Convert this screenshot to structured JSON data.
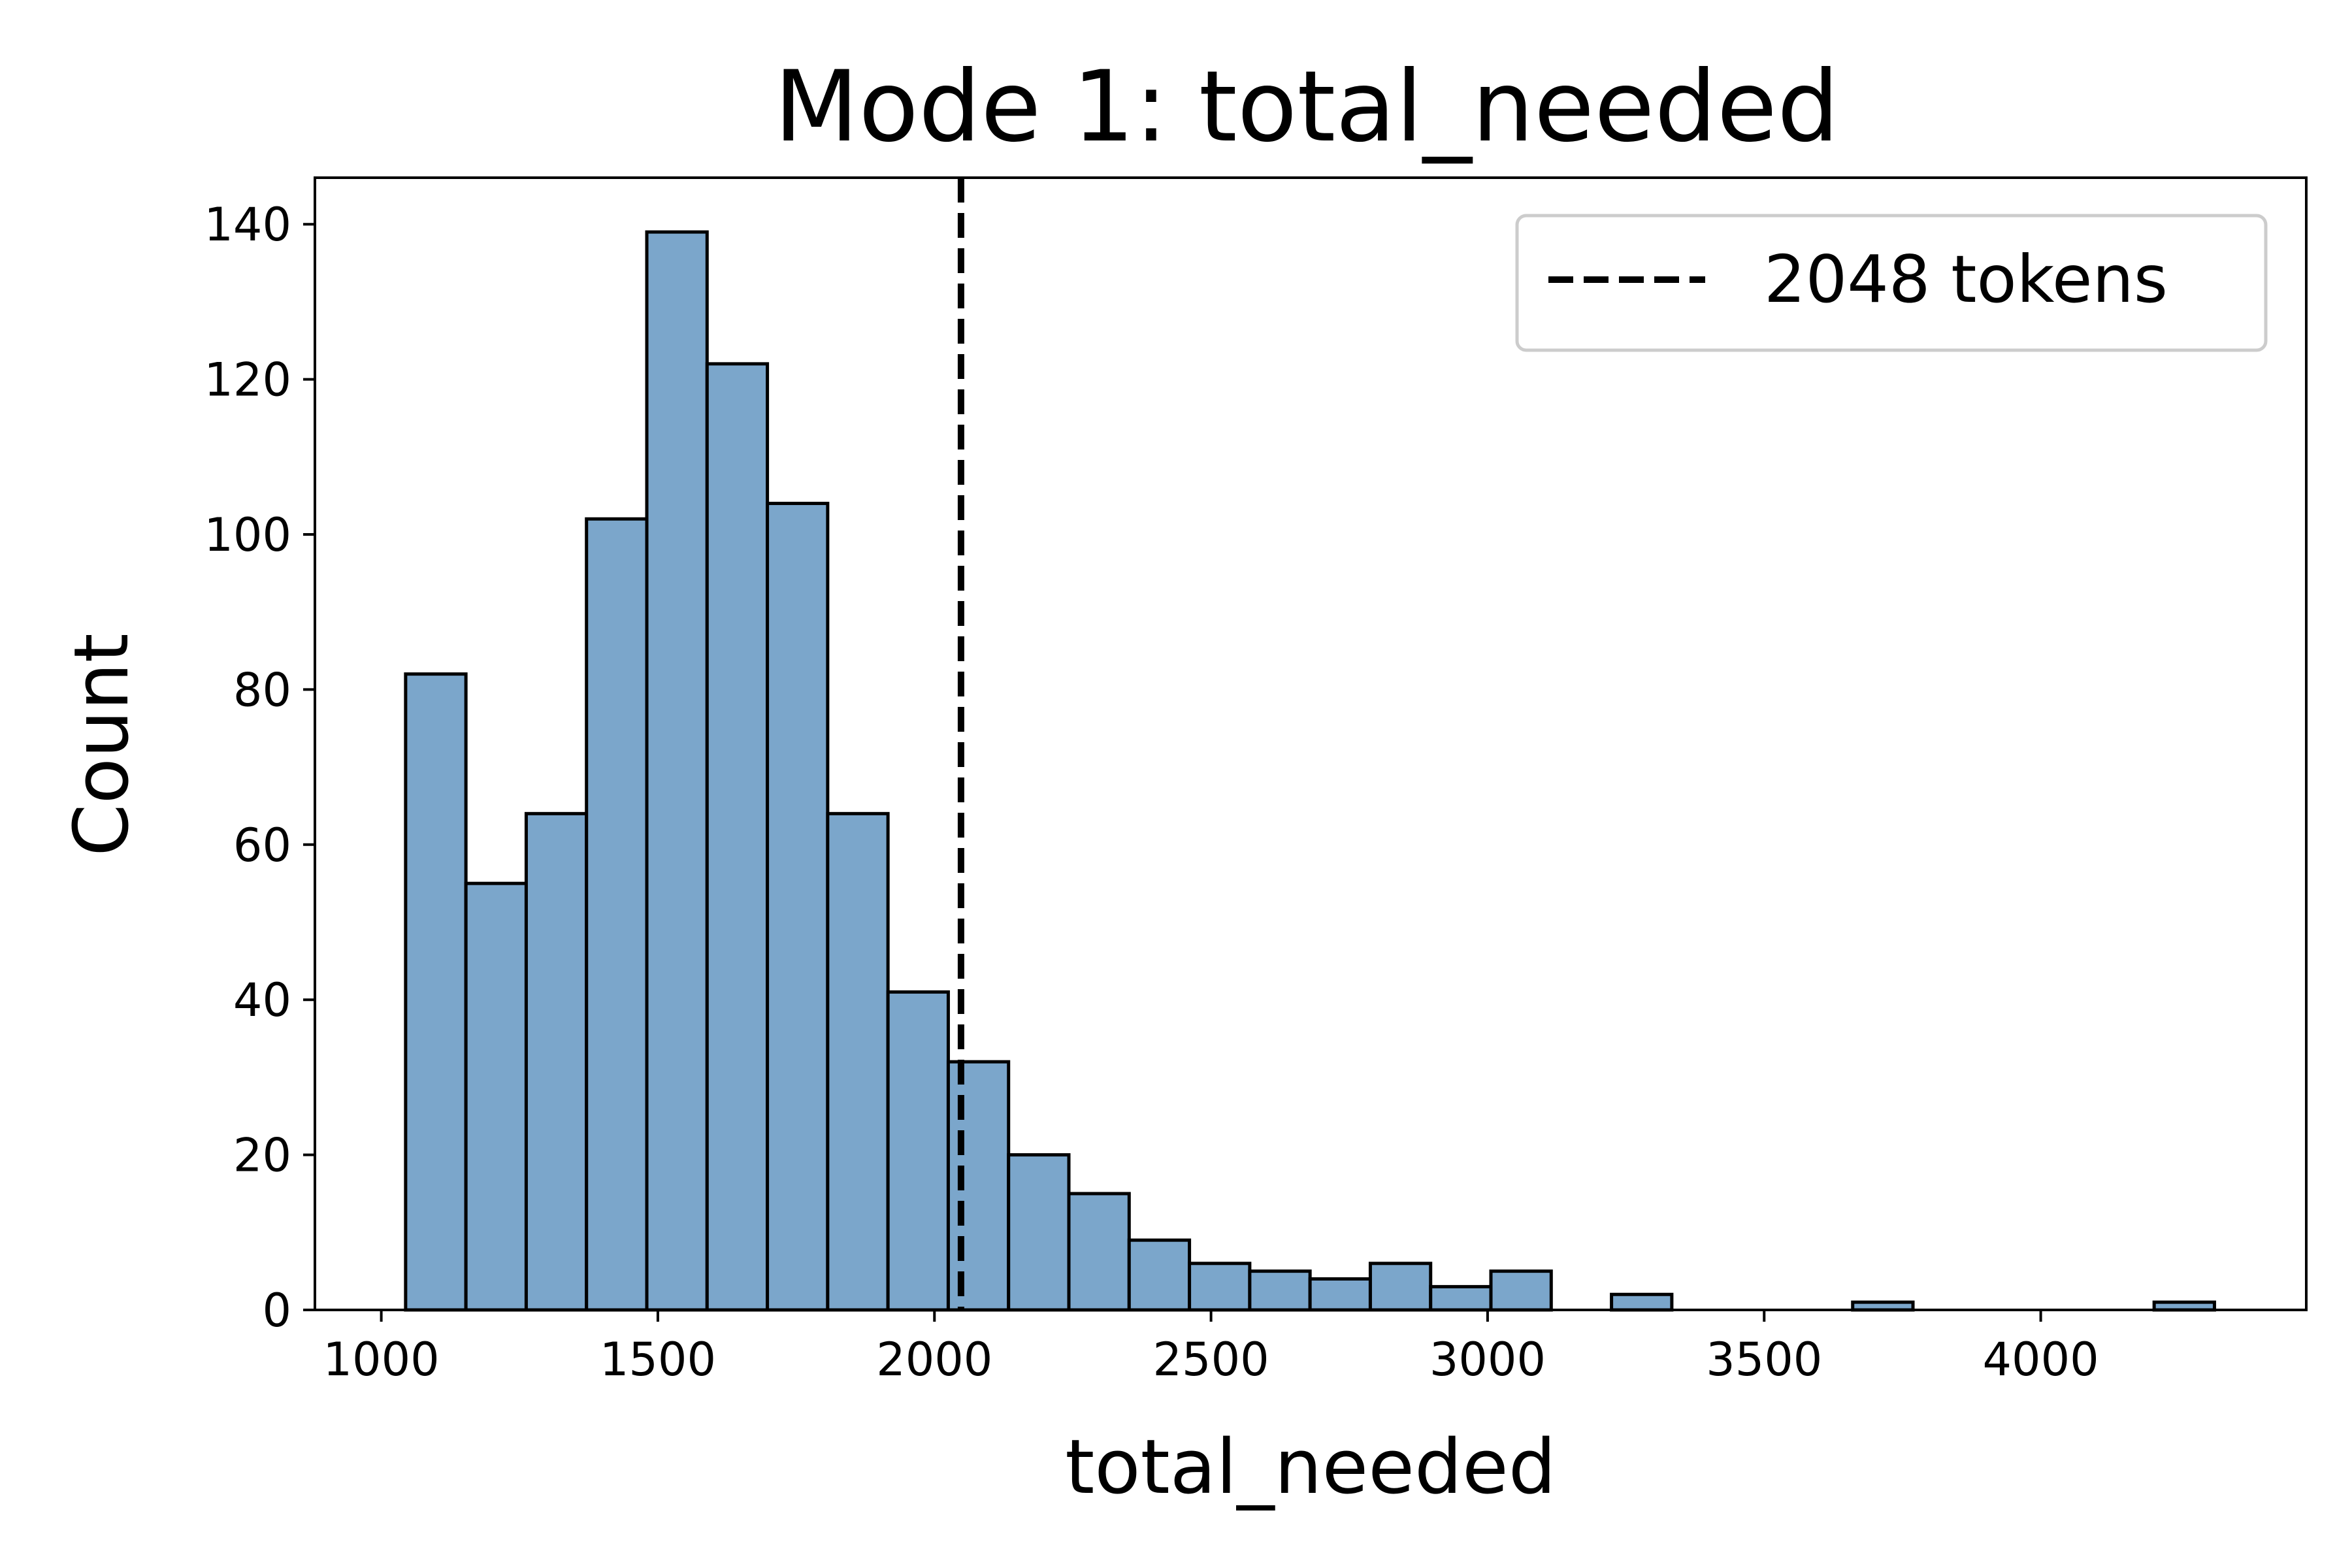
{
  "chart_data": {
    "type": "bar",
    "title": "Mode 1: total_needed",
    "xlabel": "total_needed",
    "ylabel": "Count",
    "xlim": [
      880,
      4480
    ],
    "ylim": [
      0,
      146
    ],
    "xticks": [
      1000,
      1500,
      2000,
      2500,
      3000,
      3500,
      4000
    ],
    "yticks": [
      0,
      20,
      40,
      60,
      80,
      100,
      120,
      140
    ],
    "bin_start": 1044,
    "bin_width": 109,
    "values": [
      82,
      55,
      64,
      102,
      139,
      122,
      104,
      64,
      41,
      32,
      20,
      15,
      9,
      6,
      5,
      4,
      6,
      3,
      5,
      0,
      2,
      0,
      0,
      0,
      1,
      0,
      0,
      0,
      0,
      1
    ],
    "bar_color": "#7ba6cb",
    "edge_color": "#000000",
    "reference_line": {
      "x": 2048,
      "style": "dashed",
      "color": "#000000",
      "label": "2048 tokens"
    },
    "legend": {
      "placement": "top-right",
      "entries": [
        "2048 tokens"
      ]
    },
    "grid": false
  }
}
